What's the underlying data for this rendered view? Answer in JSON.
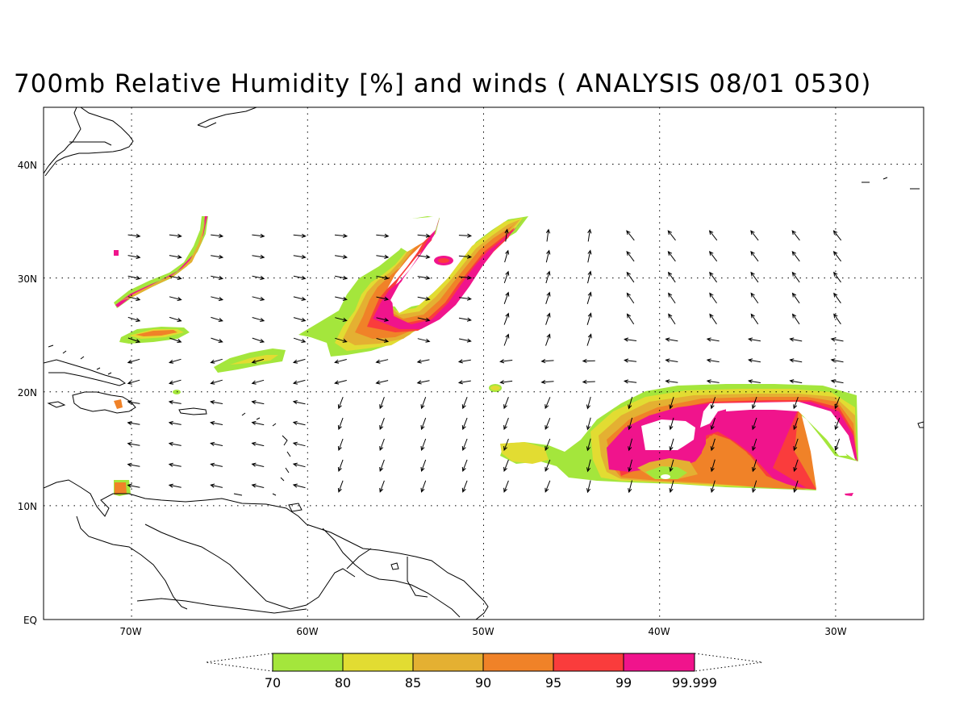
{
  "title": "700mb Relative Humidity [%] and winds ( ANALYSIS 08/01 0530)",
  "map": {
    "lon_range": [
      -75,
      -25
    ],
    "lat_range": [
      0,
      45
    ],
    "lon_ticks": [
      {
        "value": -70,
        "label": "70W"
      },
      {
        "value": -60,
        "label": "60W"
      },
      {
        "value": -50,
        "label": "50W"
      },
      {
        "value": -40,
        "label": "40W"
      },
      {
        "value": -30,
        "label": "30W"
      }
    ],
    "lat_ticks": [
      {
        "value": 0,
        "label": "EQ"
      },
      {
        "value": 10,
        "label": "10N"
      },
      {
        "value": 20,
        "label": "20N"
      },
      {
        "value": 30,
        "label": "30N"
      },
      {
        "value": 40,
        "label": "40N"
      }
    ],
    "grid_lines": "dotted",
    "wind_field_extent": {
      "lon": [
        -71,
        -29
      ],
      "lat": [
        11,
        35
      ]
    }
  },
  "colorbar": {
    "labels": [
      "70",
      "80",
      "85",
      "90",
      "95",
      "99",
      "99.999"
    ],
    "colors": [
      "#a4e63c",
      "#e2dc32",
      "#e4b032",
      "#f08228",
      "#fa3c3c",
      "#f0148c"
    ],
    "overflow_ends": "dotted-triangles"
  },
  "humidity_colors": {
    "c70": "#a4e63c",
    "c80": "#e2dc32",
    "c85": "#e4b032",
    "c90": "#f08228",
    "c95": "#fa3c3c",
    "c99": "#f0148c"
  }
}
